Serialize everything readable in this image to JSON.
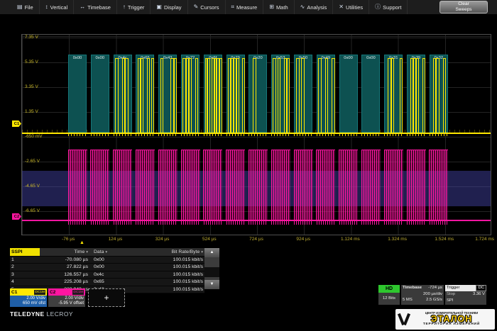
{
  "menu": {
    "items": [
      {
        "icon": "file-icon",
        "glyph": "▤",
        "label": "File"
      },
      {
        "icon": "vertical-icon",
        "glyph": "↕",
        "label": "Vertical"
      },
      {
        "icon": "timebase-icon",
        "glyph": "↔",
        "label": "Timebase"
      },
      {
        "icon": "trigger-icon",
        "glyph": "↑",
        "label": "Trigger"
      },
      {
        "icon": "display-icon",
        "glyph": "▣",
        "label": "Display"
      },
      {
        "icon": "cursors-icon",
        "glyph": "✎",
        "label": "Cursors"
      },
      {
        "icon": "measure-icon",
        "glyph": "⌗",
        "label": "Measure"
      },
      {
        "icon": "math-icon",
        "glyph": "⊞",
        "label": "Math"
      },
      {
        "icon": "analysis-icon",
        "glyph": "∿",
        "label": "Analysis"
      },
      {
        "icon": "utilities-icon",
        "glyph": "✕",
        "label": "Utilities"
      },
      {
        "icon": "support-icon",
        "glyph": "ⓘ",
        "label": "Support"
      }
    ],
    "clear_sweeps": [
      "Clear",
      "Sweeps"
    ]
  },
  "grid": {
    "c1_voltage_labels": [
      "7.35 V",
      "5.35 V",
      "3.35 V",
      "1.35 V",
      "-650 mV"
    ],
    "c2_voltage_labels": [
      "-2.65 V",
      "-4.65 V",
      "-6.65 V"
    ],
    "c1_marker": "C1",
    "c2_marker": "C2",
    "time_labels": [
      "-76 µs",
      "124 µs",
      "324 µs",
      "524 µs",
      "724 µs",
      "924 µs",
      "1.124 ms",
      "1.324 ms",
      "1.524 ms",
      "1.724 ms"
    ],
    "decoded_bytes": [
      "0x00",
      "0x00",
      "0x4c",
      "0x65",
      "0x43",
      "0x72",
      "0x6f",
      "0x79",
      "0x20",
      "0x53",
      "0x50",
      "0x49",
      "0x00",
      "0x00",
      "0x31",
      "0x39",
      "0x32"
    ]
  },
  "decode_table": {
    "protocol": "SSPI",
    "headers": [
      "Time",
      "Data",
      "Bit Rate/Byte"
    ],
    "rows": [
      [
        "1",
        "-70.080 µs",
        "0x00",
        "100.015 kbit/s"
      ],
      [
        "2",
        "27.822 µs",
        "0x00",
        "100.015 kbit/s"
      ],
      [
        "3",
        "126.557 µs",
        "0x4c",
        "100.015 kbit/s"
      ],
      [
        "4",
        "225.208 µs",
        "0x65",
        "100.015 kbit/s"
      ],
      [
        "5",
        "323.943 µs",
        "0x43",
        "100.015 kbit/s"
      ]
    ]
  },
  "channels": [
    {
      "id": "C1",
      "coupling": "DC1M",
      "scale": "2.00 V/div",
      "offset": "650 mV ofst"
    },
    {
      "id": "C2",
      "coupling": "DC1M",
      "scale": "2.00 V/div",
      "offset": "-5.95 V offset"
    }
  ],
  "add_trace_label": "+",
  "acquisition": {
    "badge": "HD",
    "bits": "12 Bits"
  },
  "timebase": {
    "label": "Timebase",
    "delay": "-724 µs",
    "scale": "200 µs/div",
    "samples": "5 MS",
    "sample_rate": "2.5 GS/s"
  },
  "trigger": {
    "label": "Trigger",
    "coupling": "DC",
    "mode": "Stop",
    "level": "3.36 V",
    "source": "SPI"
  },
  "branding": {
    "vendor": "TELEDYNE",
    "brand": "LECROY"
  },
  "etalon_logo": {
    "top_line": "ЦЕНТР ИЗМЕРИТЕЛЬНОЙ ТЕХНИКИ",
    "name": "ЭТАЛОН",
    "bottom_line": "ТЕРРИТОРИЯ ИЗМЕРЕНИЙ"
  },
  "colors": {
    "c1": "#ffe800",
    "c2": "#ff15a0",
    "decode_box": "#0d5151",
    "hd_badge": "#2ec72e",
    "c1_body": "#1f5fa8",
    "c2_body": "#3f3f3f"
  }
}
